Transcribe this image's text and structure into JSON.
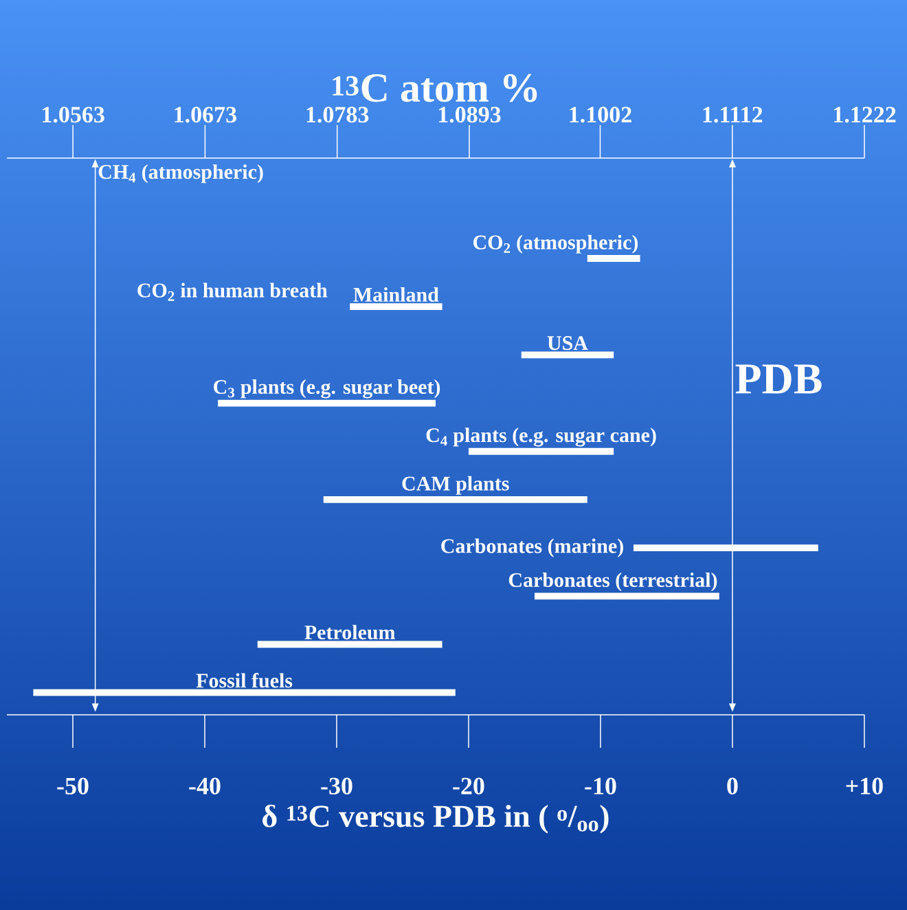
{
  "chart_data": {
    "type": "bar",
    "orientation": "horizontal",
    "x2label": "$^{13}$C atom %",
    "xlabel": "δ $^{13}$C versus PDB in ( $^{o}$/$_{oo}$)",
    "categories": [
      "CO$_{2}$ (atmospheric)",
      "Mainland",
      "USA",
      "C$_{3}$ plants (e.g. sugar beet)",
      "C$_{4}$ plants (e.g. sugar cane)",
      "CAM plants",
      "Carbonates (marine)",
      "Carbonates (terrestrial)",
      "Petroleum",
      "Fossil fuels"
    ],
    "base": [
      -11,
      -29,
      -16,
      -39,
      -20,
      -31,
      -7.5,
      -15,
      -36,
      -53
    ],
    "values": [
      4,
      7,
      7,
      16.5,
      11,
      20,
      14,
      14,
      14,
      32
    ],
    "color": "#ffffff",
    "xlim": [
      -55,
      10
    ],
    "xticks": [
      -50,
      -40,
      -30,
      -20,
      -10,
      0,
      {
        "value": 10,
        "label": "+10"
      }
    ],
    "x2lim": [
      1.0508,
      1.1222
    ],
    "x2ticks": [
      1.0563,
      1.0673,
      1.0783,
      1.0893,
      1.1002,
      1.1112,
      1.1222
    ],
    "ref_lines": [
      {
        "axis": "x",
        "value": -48.3,
        "label": "CH$_{4}$ (atmospheric)"
      },
      {
        "axis": "x",
        "value": 0,
        "label": "PDB"
      }
    ],
    "annotations": [
      "CO$_{2}$ in human breath"
    ]
  }
}
